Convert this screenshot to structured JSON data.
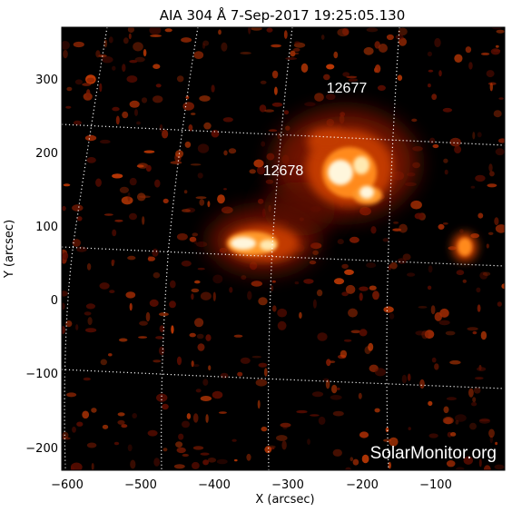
{
  "title": "AIA 304 Å   7-Sep-2017 19:25:05.130",
  "xlabel": "X (arcsec)",
  "ylabel": "Y (arcsec)",
  "x_ticks": [
    "−600",
    "−500",
    "−400",
    "−300",
    "−200",
    "−100"
  ],
  "y_ticks": [
    "300",
    "200",
    "100",
    "0",
    "−100",
    "−200"
  ],
  "regions": [
    {
      "label": "12677"
    },
    {
      "label": "12678"
    }
  ],
  "watermark": "SolarMonitor.org",
  "colors": {
    "background": "#000000",
    "plasma_dark": "#5a0c00",
    "plasma_mid": "#c23a05",
    "plasma_bright": "#ff9a2a",
    "plasma_core": "#fff6dc",
    "grid": "#ffffff",
    "text_on_image": "#ffffff",
    "frame_text": "#000000"
  }
}
